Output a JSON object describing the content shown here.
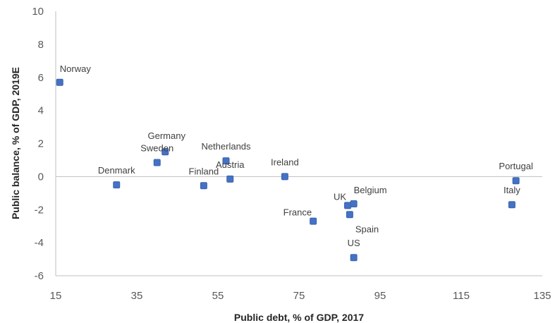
{
  "chart_data": {
    "type": "scatter",
    "xlabel": "Public debt, % of GDP, 2017",
    "ylabel": "Public balance, % of GDP, 2019E",
    "xlim": [
      15,
      135
    ],
    "ylim": [
      -6,
      10
    ],
    "xticks": [
      15,
      35,
      55,
      75,
      95,
      115,
      135
    ],
    "yticks": [
      -6,
      -4,
      -2,
      0,
      2,
      4,
      6,
      8,
      10
    ],
    "grid": false,
    "marker_color": "#4472C4",
    "points": [
      {
        "label": "Norway",
        "x": 16,
        "y": 5.7,
        "label_pos": "ne"
      },
      {
        "label": "Denmark",
        "x": 30,
        "y": -0.5,
        "label_pos": "n"
      },
      {
        "label": "Sweden",
        "x": 40,
        "y": 0.85,
        "label_pos": "n"
      },
      {
        "label": "Germany",
        "x": 42,
        "y": 1.5,
        "label_pos": "n2"
      },
      {
        "label": "Finland",
        "x": 51.5,
        "y": -0.55,
        "label_pos": "n"
      },
      {
        "label": "Netherlands",
        "x": 57,
        "y": 0.95,
        "label_pos": "n"
      },
      {
        "label": "Austria",
        "x": 58,
        "y": -0.15,
        "label_pos": "n"
      },
      {
        "label": "Ireland",
        "x": 71.5,
        "y": 0.0,
        "label_pos": "n"
      },
      {
        "label": "France",
        "x": 78.5,
        "y": -2.7,
        "label_pos": "nw"
      },
      {
        "label": "UK",
        "x": 87,
        "y": -1.75,
        "label_pos": "nw"
      },
      {
        "label": "Belgium",
        "x": 88.5,
        "y": -1.65,
        "label_pos": "ne"
      },
      {
        "label": "Spain",
        "x": 87.5,
        "y": -2.3,
        "label_pos": "se"
      },
      {
        "label": "US",
        "x": 88.5,
        "y": -4.9,
        "label_pos": "n"
      },
      {
        "label": "Portugal",
        "x": 128.5,
        "y": -0.25,
        "label_pos": "n"
      },
      {
        "label": "Italy",
        "x": 127.5,
        "y": -1.7,
        "label_pos": "n"
      }
    ]
  }
}
